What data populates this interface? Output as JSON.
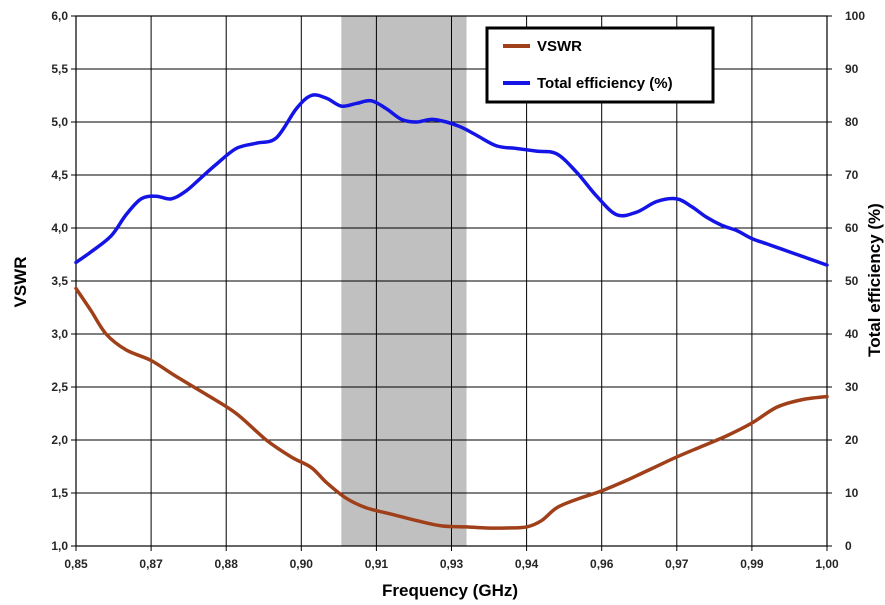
{
  "chart_data": {
    "type": "line",
    "xlabel": "Frequency (GHz)",
    "ylabel": "VSWR",
    "y2label": "Total efficiency (%)",
    "xlim": [
      0.85,
      1.0
    ],
    "ylim": [
      1.0,
      6.0
    ],
    "y2lim": [
      0,
      100
    ],
    "x_ticks": [
      "0,85",
      "0,87",
      "0,88",
      "0,90",
      "0,91",
      "0,93",
      "0,94",
      "0,96",
      "0,97",
      "0,99",
      "1,00"
    ],
    "y_ticks": [
      "1,0",
      "1,5",
      "2,0",
      "2,5",
      "3,0",
      "3,5",
      "4,0",
      "4,5",
      "5,0",
      "5,5",
      "6,0"
    ],
    "y2_ticks": [
      "0",
      "10",
      "20",
      "30",
      "40",
      "50",
      "60",
      "70",
      "80",
      "90",
      "100"
    ],
    "grid": true,
    "legend_position": "top-right",
    "highlight_band": {
      "x_start": 0.903,
      "x_end": 0.928,
      "color": "#c0c0c0"
    },
    "series": [
      {
        "name": "VSWR",
        "axis": "left",
        "color": "#a0401a",
        "x": [
          0.85,
          0.853,
          0.856,
          0.86,
          0.865,
          0.87,
          0.876,
          0.882,
          0.888,
          0.893,
          0.897,
          0.9,
          0.904,
          0.908,
          0.913,
          0.918,
          0.923,
          0.928,
          0.932,
          0.936,
          0.94,
          0.943,
          0.946,
          0.95,
          0.955,
          0.96,
          0.965,
          0.97,
          0.975,
          0.98,
          0.985,
          0.99,
          0.995,
          1.0
        ],
        "y": [
          3.43,
          3.22,
          3.0,
          2.85,
          2.75,
          2.6,
          2.43,
          2.25,
          2.0,
          1.84,
          1.74,
          1.6,
          1.45,
          1.36,
          1.3,
          1.24,
          1.19,
          1.18,
          1.17,
          1.17,
          1.18,
          1.24,
          1.36,
          1.44,
          1.52,
          1.62,
          1.73,
          1.84,
          1.94,
          2.04,
          2.16,
          2.31,
          2.38,
          2.41
        ]
      },
      {
        "name": "Total efficiency (%)",
        "axis": "right",
        "color": "#1414e6",
        "x": [
          0.85,
          0.853,
          0.857,
          0.86,
          0.863,
          0.866,
          0.869,
          0.872,
          0.875,
          0.878,
          0.882,
          0.886,
          0.89,
          0.894,
          0.897,
          0.9,
          0.903,
          0.906,
          0.909,
          0.912,
          0.915,
          0.918,
          0.921,
          0.924,
          0.927,
          0.93,
          0.934,
          0.938,
          0.942,
          0.946,
          0.95,
          0.954,
          0.958,
          0.962,
          0.966,
          0.97,
          0.973,
          0.976,
          0.979,
          0.982,
          0.985,
          0.988,
          0.991,
          0.994,
          0.997,
          1.0
        ],
        "y": [
          53.5,
          55.5,
          58.5,
          62.5,
          65.5,
          66.0,
          65.5,
          67.0,
          69.5,
          72.0,
          75.0,
          76.0,
          77.0,
          82.5,
          85.0,
          84.5,
          83.0,
          83.5,
          84.0,
          82.5,
          80.5,
          80.0,
          80.5,
          80.0,
          79.0,
          77.5,
          75.5,
          75.0,
          74.5,
          74.0,
          70.5,
          66.0,
          62.5,
          63.0,
          65.0,
          65.5,
          64.0,
          62.0,
          60.5,
          59.5,
          58.0,
          57.0,
          56.0,
          55.0,
          54.0,
          53.0
        ]
      }
    ]
  }
}
